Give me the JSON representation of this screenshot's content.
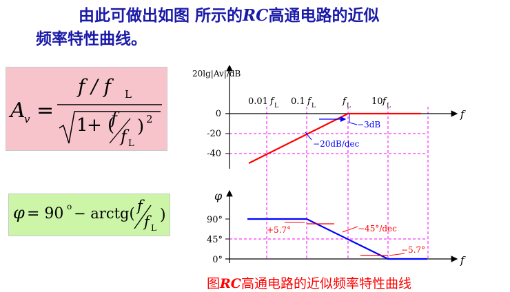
{
  "title": {
    "line1_prefix": "由此可做出如图 所示的",
    "line1_rc": "RC",
    "line1_suffix": "高通电路的近似",
    "line2": "频率特性曲线。"
  },
  "formula_gain": {
    "lhs": "A",
    "lhs_sub": "v",
    "eq": "=",
    "num": "f / f",
    "num_sub": "L",
    "den_one": "1",
    "den_plus": "+ (",
    "den_f": "f",
    "den_fL": "f",
    "den_fL_sub": "L",
    "den_close": ")",
    "den_exp": "2"
  },
  "formula_phase": {
    "phi": "φ",
    "eq": "= 90",
    "deg": "o",
    "minus": "− arctg(",
    "f": "f",
    "fL": "f",
    "fL_sub": "L",
    "close": ")"
  },
  "diagram": {
    "mag_ylabel": "20lg|Av|/dB",
    "x_axis_label": "f",
    "phase_ylabel": "φ",
    "freq_ticks": [
      {
        "prefix": "0.01",
        "f": "f",
        "sub": "L"
      },
      {
        "prefix": "0.1",
        "f": "f",
        "sub": "L"
      },
      {
        "prefix": "",
        "f": "f",
        "sub": "L"
      },
      {
        "prefix": "10",
        "f": "f",
        "sub": "L"
      }
    ],
    "mag_ticks": [
      "0",
      "-20",
      "-40"
    ],
    "phase_ticks": [
      "90°",
      "45°",
      "0°"
    ],
    "annotations": {
      "three_db": "3dB",
      "slope_mag": "20dB/dec",
      "plus_57": "+5.7°",
      "slope_phase": "−45°/dec",
      "minus_57": "−5.7°"
    },
    "colors": {
      "mag_curve": "#ff0000",
      "phase_curve": "#0000ff",
      "grid": "#ff00ff",
      "annotation_blue": "#0000ff",
      "annotation_red": "#ff0000"
    }
  },
  "caption": {
    "prefix": "图",
    "rc": "RC",
    "suffix": "高通电路的近似频率特性曲线"
  }
}
